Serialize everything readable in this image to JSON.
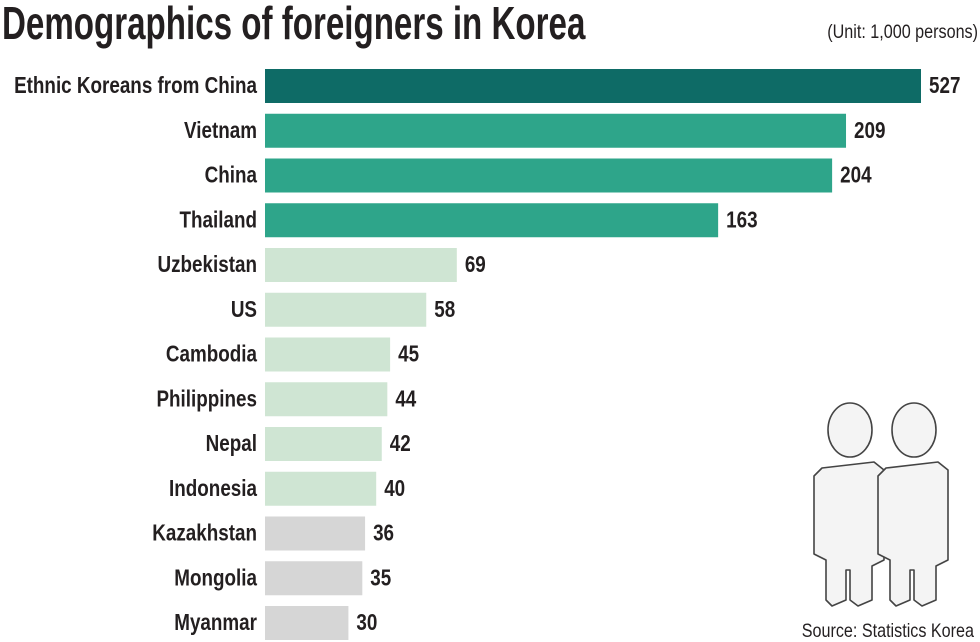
{
  "chart_data": {
    "type": "bar",
    "orientation": "horizontal",
    "title": "Demographics of foreigners in Korea",
    "subtitle": "(Unit: 1,000 persons)",
    "source": "Source: Statistics Korea",
    "categories": [
      "Ethnic Koreans from China",
      "Vietnam",
      "China",
      "Thailand",
      "Uzbekistan",
      "US",
      "Cambodia",
      "Philippines",
      "Nepal",
      "Indonesia",
      "Kazakhstan",
      "Mongolia",
      "Myanmar"
    ],
    "values": [
      527,
      209,
      204,
      163,
      69,
      58,
      45,
      44,
      42,
      40,
      36,
      35,
      30
    ],
    "colors": [
      "#0e6b66",
      "#2ea58a",
      "#2ea58a",
      "#2ea58a",
      "#cfe5d3",
      "#cfe5d3",
      "#cfe5d3",
      "#cfe5d3",
      "#cfe5d3",
      "#cfe5d3",
      "#d6d6d6",
      "#d6d6d6",
      "#d6d6d6"
    ],
    "grid": false
  }
}
